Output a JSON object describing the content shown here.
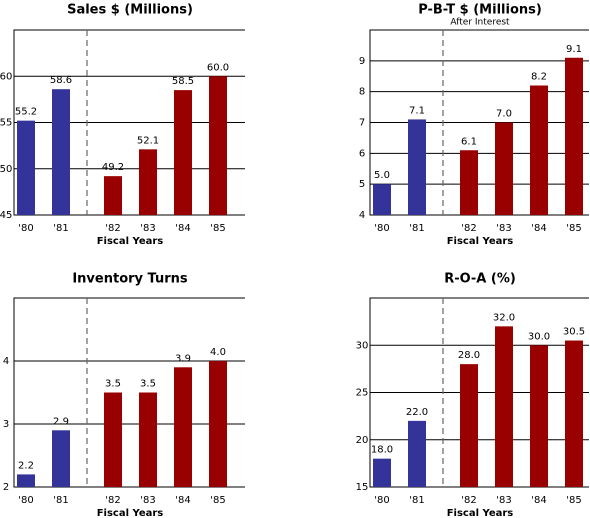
{
  "chart_data": [
    {
      "type": "bar",
      "title": "Sales $ (Millions)",
      "x_label": "Fiscal Years",
      "categories": [
        "'80",
        "'81",
        "'82",
        "'83",
        "'84",
        "'85"
      ],
      "values": [
        55.2,
        58.6,
        49.2,
        52.1,
        58.5,
        60.0
      ],
      "value_labels": [
        "55.2",
        "58.6",
        "49.2",
        "52.1",
        "58.5",
        "60.0"
      ],
      "colors": [
        "#333399",
        "#333399",
        "#990000",
        "#990000",
        "#990000",
        "#990000"
      ],
      "ylim": [
        45,
        65
      ],
      "yticks": [
        45,
        50,
        55,
        60
      ],
      "grid": true
    },
    {
      "type": "bar",
      "title": "P-B-T $ (Millions)",
      "subtitle": "After Interest",
      "x_label": "Fiscal Years",
      "categories": [
        "'80",
        "'81",
        "'82",
        "'83",
        "'84",
        "'85"
      ],
      "values": [
        5.0,
        7.1,
        6.1,
        7.0,
        8.2,
        9.1
      ],
      "value_labels": [
        "5.0",
        "7.1",
        "6.1",
        "7.0",
        "8.2",
        "9.1"
      ],
      "colors": [
        "#333399",
        "#333399",
        "#990000",
        "#990000",
        "#990000",
        "#990000"
      ],
      "ylim": [
        4,
        10
      ],
      "yticks": [
        4,
        5,
        6,
        7,
        8,
        9
      ],
      "grid": true
    },
    {
      "type": "bar",
      "title": "Inventory Turns",
      "x_label": "Fiscal Years",
      "categories": [
        "'80",
        "'81",
        "'82",
        "'83",
        "'84",
        "'85"
      ],
      "values": [
        2.2,
        2.9,
        3.5,
        3.5,
        3.9,
        4.0
      ],
      "value_labels": [
        "2.2",
        "2.9",
        "3.5",
        "3.5",
        "3.9",
        "4.0"
      ],
      "colors": [
        "#333399",
        "#333399",
        "#990000",
        "#990000",
        "#990000",
        "#990000"
      ],
      "ylim": [
        2,
        5
      ],
      "yticks": [
        2,
        3,
        4
      ],
      "grid": true
    },
    {
      "type": "bar",
      "title": "R-O-A (%)",
      "x_label": "Fiscal Years",
      "categories": [
        "'80",
        "'81",
        "'82",
        "'83",
        "'84",
        "'85"
      ],
      "values": [
        18.0,
        22.0,
        28.0,
        32.0,
        30.0,
        30.5
      ],
      "value_labels": [
        "18.0",
        "22.0",
        "28.0",
        "32.0",
        "30.0",
        "30.5"
      ],
      "colors": [
        "#333399",
        "#333399",
        "#990000",
        "#990000",
        "#990000",
        "#990000"
      ],
      "ylim": [
        15,
        35
      ],
      "yticks": [
        15,
        20,
        25,
        30
      ],
      "grid": true
    }
  ]
}
